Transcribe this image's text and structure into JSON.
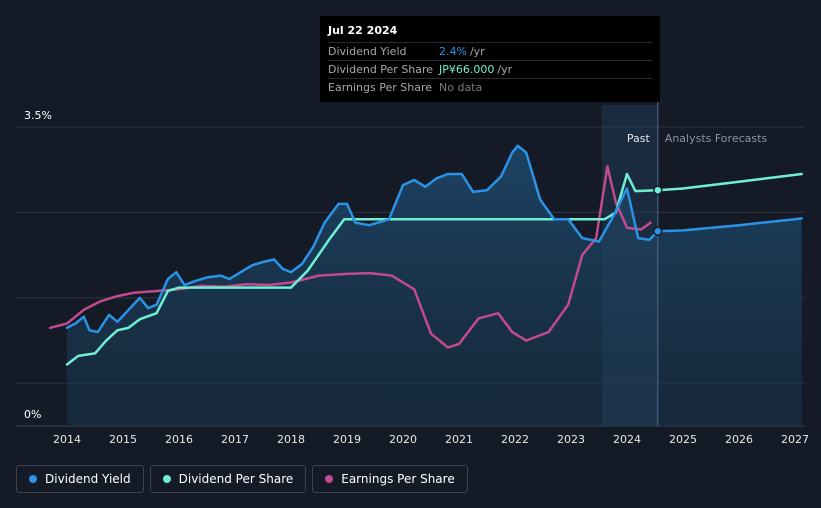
{
  "chart_data": {
    "type": "line",
    "title": "",
    "y_axis": {
      "min_label": "0%",
      "max_label": "3.5%",
      "ylim": [
        0,
        3.5
      ]
    },
    "x_ticks": [
      "2014",
      "2015",
      "2016",
      "2017",
      "2018",
      "2019",
      "2020",
      "2021",
      "2022",
      "2023",
      "2024",
      "2025",
      "2026",
      "2027"
    ],
    "section_labels": {
      "past": "Past",
      "forecast": "Analysts Forecasts"
    },
    "series": [
      {
        "name": "Dividend Yield",
        "color": "#2b93e6",
        "points": [
          [
            2014.0,
            1.15
          ],
          [
            2014.15,
            1.2
          ],
          [
            2014.3,
            1.28
          ],
          [
            2014.4,
            1.12
          ],
          [
            2014.55,
            1.1
          ],
          [
            2014.75,
            1.3
          ],
          [
            2014.9,
            1.22
          ],
          [
            2015.1,
            1.36
          ],
          [
            2015.3,
            1.5
          ],
          [
            2015.45,
            1.38
          ],
          [
            2015.6,
            1.42
          ],
          [
            2015.8,
            1.72
          ],
          [
            2015.95,
            1.8
          ],
          [
            2016.1,
            1.65
          ],
          [
            2016.3,
            1.7
          ],
          [
            2016.5,
            1.74
          ],
          [
            2016.75,
            1.76
          ],
          [
            2016.9,
            1.72
          ],
          [
            2017.1,
            1.8
          ],
          [
            2017.3,
            1.88
          ],
          [
            2017.5,
            1.92
          ],
          [
            2017.7,
            1.95
          ],
          [
            2017.85,
            1.84
          ],
          [
            2018.0,
            1.8
          ],
          [
            2018.2,
            1.9
          ],
          [
            2018.4,
            2.1
          ],
          [
            2018.6,
            2.38
          ],
          [
            2018.85,
            2.6
          ],
          [
            2019.0,
            2.6
          ],
          [
            2019.15,
            2.38
          ],
          [
            2019.4,
            2.35
          ],
          [
            2019.75,
            2.42
          ],
          [
            2020.0,
            2.82
          ],
          [
            2020.2,
            2.88
          ],
          [
            2020.4,
            2.8
          ],
          [
            2020.6,
            2.9
          ],
          [
            2020.8,
            2.95
          ],
          [
            2021.05,
            2.95
          ],
          [
            2021.25,
            2.74
          ],
          [
            2021.5,
            2.76
          ],
          [
            2021.75,
            2.92
          ],
          [
            2021.95,
            3.2
          ],
          [
            2022.05,
            3.28
          ],
          [
            2022.2,
            3.2
          ],
          [
            2022.45,
            2.65
          ],
          [
            2022.7,
            2.42
          ],
          [
            2022.95,
            2.42
          ],
          [
            2023.2,
            2.2
          ],
          [
            2023.5,
            2.16
          ],
          [
            2023.75,
            2.45
          ],
          [
            2024.0,
            2.78
          ],
          [
            2024.2,
            2.2
          ],
          [
            2024.4,
            2.18
          ],
          [
            2024.55,
            2.28
          ],
          [
            2025.0,
            2.29
          ],
          [
            2026.0,
            2.35
          ],
          [
            2027.0,
            2.42
          ],
          [
            2027.12,
            2.43
          ]
        ]
      },
      {
        "name": "Dividend Per Share",
        "color": "#6ff0d3",
        "points": [
          [
            2014.0,
            0.72
          ],
          [
            2014.2,
            0.82
          ],
          [
            2014.5,
            0.85
          ],
          [
            2014.7,
            1.0
          ],
          [
            2014.9,
            1.12
          ],
          [
            2015.1,
            1.15
          ],
          [
            2015.3,
            1.25
          ],
          [
            2015.6,
            1.32
          ],
          [
            2015.8,
            1.58
          ],
          [
            2016.0,
            1.62
          ],
          [
            2016.5,
            1.62
          ],
          [
            2017.0,
            1.62
          ],
          [
            2017.5,
            1.62
          ],
          [
            2018.0,
            1.62
          ],
          [
            2018.3,
            1.82
          ],
          [
            2018.7,
            2.2
          ],
          [
            2018.95,
            2.42
          ],
          [
            2019.5,
            2.42
          ],
          [
            2020.0,
            2.42
          ],
          [
            2021.0,
            2.42
          ],
          [
            2022.0,
            2.42
          ],
          [
            2023.0,
            2.42
          ],
          [
            2023.6,
            2.42
          ],
          [
            2023.8,
            2.5
          ],
          [
            2024.0,
            2.95
          ],
          [
            2024.15,
            2.75
          ],
          [
            2024.55,
            2.76
          ],
          [
            2025.0,
            2.78
          ],
          [
            2026.0,
            2.86
          ],
          [
            2027.12,
            2.95
          ]
        ]
      },
      {
        "name": "Earnings Per Share",
        "color": "#c24a8e",
        "points": [
          [
            2013.7,
            1.15
          ],
          [
            2014.0,
            1.2
          ],
          [
            2014.3,
            1.36
          ],
          [
            2014.6,
            1.46
          ],
          [
            2014.9,
            1.52
          ],
          [
            2015.2,
            1.56
          ],
          [
            2015.6,
            1.58
          ],
          [
            2016.0,
            1.6
          ],
          [
            2016.4,
            1.64
          ],
          [
            2016.8,
            1.63
          ],
          [
            2017.2,
            1.66
          ],
          [
            2017.6,
            1.65
          ],
          [
            2018.0,
            1.68
          ],
          [
            2018.5,
            1.76
          ],
          [
            2019.0,
            1.78
          ],
          [
            2019.4,
            1.79
          ],
          [
            2019.8,
            1.76
          ],
          [
            2020.2,
            1.6
          ],
          [
            2020.5,
            1.08
          ],
          [
            2020.8,
            0.92
          ],
          [
            2021.0,
            0.96
          ],
          [
            2021.35,
            1.26
          ],
          [
            2021.7,
            1.32
          ],
          [
            2021.95,
            1.1
          ],
          [
            2022.2,
            1.0
          ],
          [
            2022.6,
            1.1
          ],
          [
            2022.95,
            1.42
          ],
          [
            2023.2,
            2.0
          ],
          [
            2023.45,
            2.2
          ],
          [
            2023.65,
            3.04
          ],
          [
            2023.8,
            2.62
          ],
          [
            2024.0,
            2.32
          ],
          [
            2024.25,
            2.3
          ],
          [
            2024.42,
            2.38
          ]
        ]
      }
    ],
    "forecast_start_x": 2024.55,
    "past_shade_start_x": 2023.55
  },
  "tooltip": {
    "date": "Jul 22 2024",
    "rows": [
      {
        "label": "Dividend Yield",
        "value": "2.4%",
        "unit": "/yr",
        "color": "#2b93e6"
      },
      {
        "label": "Dividend Per Share",
        "value": "JP¥66.000",
        "unit": "/yr",
        "color": "#6ff0d3"
      },
      {
        "label": "Earnings Per Share",
        "value": "No data",
        "unit": "",
        "color": "#7a7a7a"
      }
    ]
  },
  "legend": [
    {
      "label": "Dividend Yield",
      "color": "#2b93e6"
    },
    {
      "label": "Dividend Per Share",
      "color": "#6ff0d3"
    },
    {
      "label": "Earnings Per Share",
      "color": "#c24a8e"
    }
  ]
}
